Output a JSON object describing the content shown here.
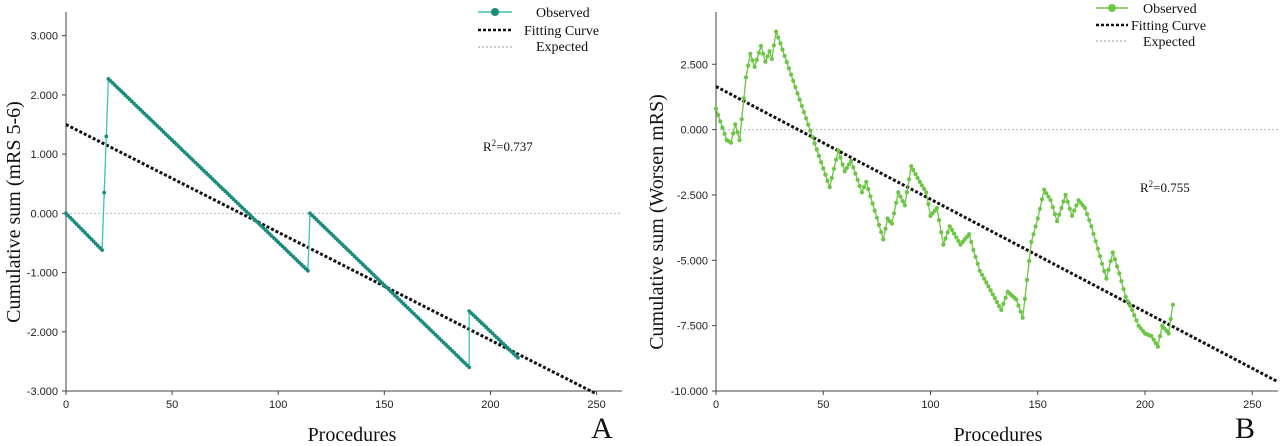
{
  "chart_data": [
    {
      "type": "line",
      "panel_label": "A",
      "xlabel": "Procedures",
      "ylabel": "Cumulative sum (mRS 5-6)",
      "xlim": [
        0,
        262
      ],
      "ylim": [
        -3,
        3.4
      ],
      "xticks": [
        0,
        50,
        100,
        150,
        200,
        250
      ],
      "yticks": [
        -3,
        -2,
        -1,
        0,
        1,
        2,
        3
      ],
      "ytick_labels": [
        "-3.000",
        "-2.000",
        "-1.000",
        "0.000",
        "1.000",
        "2.000",
        "3.000"
      ],
      "legend_position": "top-right",
      "legend": [
        "Observed",
        "Fitting Curve",
        "Expected"
      ],
      "annotation": {
        "base": "R",
        "sup": "2",
        "rest": "=0.737"
      },
      "colors": {
        "observed": "#1a8c7c",
        "observed_line": "#3cc4b0",
        "fit": "#111111",
        "expected": "#bbbbbb"
      },
      "observed_segments": [
        {
          "x0": 0,
          "x1": 17,
          "y0": 0.0,
          "y1": -0.62
        },
        {
          "x0": 20,
          "x1": 114,
          "y0": 2.27,
          "y1": -0.97
        },
        {
          "x0": 115,
          "x1": 190,
          "y0": 0.0,
          "y1": -2.6
        },
        {
          "x0": 190,
          "x1": 213,
          "y0": -1.65,
          "y1": -2.44
        }
      ],
      "observed_jump_points": [
        {
          "x": 18,
          "y": 0.35
        },
        {
          "x": 19,
          "y": 1.3
        }
      ],
      "fit": {
        "x0": 0,
        "y0": 1.5,
        "x1": 250,
        "y1": -3.05
      },
      "expected_y": 0
    },
    {
      "type": "line",
      "panel_label": "B",
      "xlabel": "Procedures",
      "ylabel": "Cumulative sum (Worsen mRS)",
      "xlim": [
        0,
        262
      ],
      "ylim": [
        -10,
        4.5
      ],
      "xticks": [
        0,
        50,
        100,
        150,
        200,
        250
      ],
      "yticks": [
        -10,
        -7.5,
        -5,
        -2.5,
        0,
        2.5
      ],
      "ytick_labels": [
        "-10.000",
        "-7.500",
        "-5.000",
        "-2.500",
        "0.000",
        "2.500"
      ],
      "legend_position": "top-right",
      "legend": [
        "Observed",
        "Fitting Curve",
        "Expected"
      ],
      "annotation": {
        "base": "R",
        "sup": "2",
        "rest": "=0.755"
      },
      "colors": {
        "observed": "#6cc644",
        "observed_line": "#6cc644",
        "fit": "#111111",
        "expected": "#bbbbbb"
      },
      "observed_keypoints": [
        [
          0,
          0.8
        ],
        [
          5,
          -0.4
        ],
        [
          7,
          -0.5
        ],
        [
          9,
          0.2
        ],
        [
          11,
          -0.4
        ],
        [
          14,
          2.0
        ],
        [
          16,
          2.9
        ],
        [
          18,
          2.4
        ],
        [
          21,
          3.2
        ],
        [
          23,
          2.6
        ],
        [
          25,
          3.0
        ],
        [
          26,
          2.7
        ],
        [
          28,
          3.75
        ],
        [
          30,
          3.3
        ],
        [
          53,
          -2.2
        ],
        [
          57,
          -0.8
        ],
        [
          60,
          -1.6
        ],
        [
          63,
          -1.2
        ],
        [
          68,
          -2.4
        ],
        [
          70,
          -2.0
        ],
        [
          78,
          -4.2
        ],
        [
          80,
          -3.4
        ],
        [
          82,
          -3.6
        ],
        [
          85,
          -2.4
        ],
        [
          88,
          -2.9
        ],
        [
          91,
          -1.4
        ],
        [
          95,
          -2.0
        ],
        [
          98,
          -2.4
        ],
        [
          100,
          -3.3
        ],
        [
          103,
          -3.0
        ],
        [
          106,
          -4.4
        ],
        [
          109,
          -3.7
        ],
        [
          114,
          -4.4
        ],
        [
          118,
          -4.0
        ],
        [
          120,
          -4.6
        ],
        [
          123,
          -5.4
        ],
        [
          133,
          -6.9
        ],
        [
          136,
          -6.2
        ],
        [
          140,
          -6.5
        ],
        [
          143,
          -7.2
        ],
        [
          147,
          -4.3
        ],
        [
          150,
          -3.4
        ],
        [
          153,
          -2.3
        ],
        [
          156,
          -2.7
        ],
        [
          159,
          -3.5
        ],
        [
          163,
          -2.5
        ],
        [
          166,
          -3.3
        ],
        [
          169,
          -2.7
        ],
        [
          172,
          -3.0
        ],
        [
          175,
          -3.7
        ],
        [
          182,
          -5.7
        ],
        [
          185,
          -4.7
        ],
        [
          188,
          -5.5
        ],
        [
          191,
          -6.4
        ],
        [
          194,
          -6.9
        ],
        [
          197,
          -7.5
        ],
        [
          200,
          -7.8
        ],
        [
          203,
          -7.9
        ],
        [
          206,
          -8.3
        ],
        [
          208,
          -7.5
        ],
        [
          211,
          -7.8
        ],
        [
          213,
          -6.7
        ]
      ],
      "fit": {
        "x0": 0,
        "y0": 1.65,
        "x1": 262,
        "y1": -9.65
      },
      "expected_y": 0
    }
  ]
}
